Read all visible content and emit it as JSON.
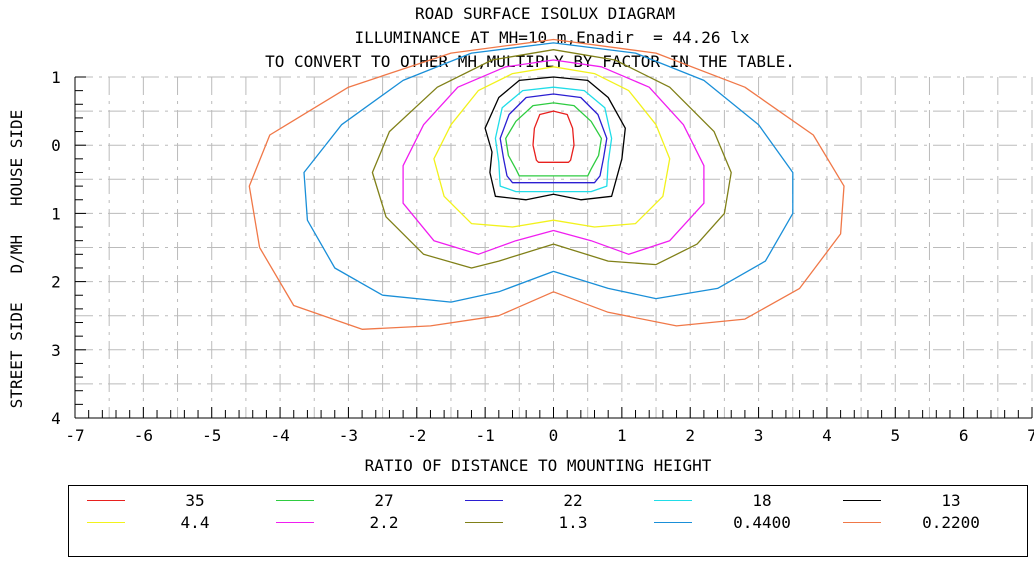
{
  "chart_data": {
    "type": "contour",
    "title_lines": [
      "ROAD SURFACE ISOLUX DIAGRAM",
      "ILLUMINANCE AT MH=10 m,Enadir  = 44.26 lx",
      "TO CONVERT TO OTHER MH,MULTIPLY BY FACTOR IN THE TABLE."
    ],
    "xlabel": "RATIO OF DISTANCE TO MOUNTING HEIGHT",
    "ylabel": "STREET SIDE   D/MH   HOUSE SIDE",
    "xlim": [
      -7,
      7
    ],
    "ylim": [
      -1,
      4
    ],
    "x_ticks": [
      "-7",
      "-6",
      "-5",
      "-4",
      "-3",
      "-2",
      "-1",
      "0",
      "1",
      "2",
      "3",
      "4",
      "5",
      "6",
      "7"
    ],
    "y_ticks": [
      {
        "value": -1,
        "label": "1"
      },
      {
        "value": 0,
        "label": "0"
      },
      {
        "value": 1,
        "label": "1"
      },
      {
        "value": 2,
        "label": "2"
      },
      {
        "value": 3,
        "label": "3"
      },
      {
        "value": 4,
        "label": "4"
      }
    ],
    "grid": true,
    "contours": [
      {
        "level": "35",
        "color": "#e8201e",
        "points": [
          [
            0,
            -0.5
          ],
          [
            0.2,
            -0.45
          ],
          [
            0.28,
            -0.25
          ],
          [
            0.3,
            0
          ],
          [
            0.25,
            0.22
          ],
          [
            0.22,
            0.25
          ],
          [
            0,
            0.25
          ],
          [
            -0.22,
            0.25
          ],
          [
            -0.25,
            0.22
          ],
          [
            -0.3,
            0
          ],
          [
            -0.28,
            -0.25
          ],
          [
            -0.2,
            -0.45
          ]
        ]
      },
      {
        "level": "27",
        "color": "#2ecc40",
        "points": [
          [
            0,
            -0.62
          ],
          [
            0.3,
            -0.58
          ],
          [
            0.55,
            -0.35
          ],
          [
            0.7,
            -0.1
          ],
          [
            0.66,
            0.15
          ],
          [
            0.55,
            0.35
          ],
          [
            0.5,
            0.45
          ],
          [
            0,
            0.45
          ],
          [
            -0.5,
            0.45
          ],
          [
            -0.55,
            0.35
          ],
          [
            -0.66,
            0.15
          ],
          [
            -0.7,
            -0.1
          ],
          [
            -0.55,
            -0.35
          ],
          [
            -0.3,
            -0.58
          ]
        ]
      },
      {
        "level": "22",
        "color": "#2b1ed2",
        "points": [
          [
            0,
            -0.75
          ],
          [
            0.4,
            -0.7
          ],
          [
            0.65,
            -0.45
          ],
          [
            0.78,
            -0.1
          ],
          [
            0.73,
            0.2
          ],
          [
            0.68,
            0.45
          ],
          [
            0.6,
            0.55
          ],
          [
            0,
            0.55
          ],
          [
            -0.6,
            0.55
          ],
          [
            -0.68,
            0.45
          ],
          [
            -0.73,
            0.2
          ],
          [
            -0.78,
            -0.1
          ],
          [
            -0.65,
            -0.45
          ],
          [
            -0.4,
            -0.7
          ]
        ]
      },
      {
        "level": "18",
        "color": "#20dde8",
        "points": [
          [
            0,
            -0.85
          ],
          [
            0.45,
            -0.8
          ],
          [
            0.75,
            -0.55
          ],
          [
            0.85,
            -0.1
          ],
          [
            0.8,
            0.25
          ],
          [
            0.78,
            0.6
          ],
          [
            0.55,
            0.68
          ],
          [
            0,
            0.68
          ],
          [
            -0.55,
            0.68
          ],
          [
            -0.78,
            0.6
          ],
          [
            -0.8,
            0.25
          ],
          [
            -0.85,
            -0.1
          ],
          [
            -0.75,
            -0.55
          ],
          [
            -0.45,
            -0.8
          ]
        ]
      },
      {
        "level": "13",
        "color": "#000000",
        "points": [
          [
            0,
            -1
          ],
          [
            0.5,
            -0.95
          ],
          [
            0.8,
            -0.7
          ],
          [
            1.05,
            -0.25
          ],
          [
            1.0,
            0.2
          ],
          [
            0.85,
            0.75
          ],
          [
            0.4,
            0.8
          ],
          [
            0,
            0.72
          ],
          [
            -0.4,
            0.8
          ],
          [
            -0.85,
            0.75
          ],
          [
            -0.93,
            0.4
          ],
          [
            -0.9,
            0.1
          ],
          [
            -1.0,
            -0.25
          ],
          [
            -0.8,
            -0.7
          ],
          [
            -0.5,
            -0.95
          ]
        ]
      },
      {
        "level": "4.4",
        "color": "#f2f21c",
        "points": [
          [
            0,
            -1.15
          ],
          [
            0.6,
            -1.05
          ],
          [
            1.1,
            -0.8
          ],
          [
            1.5,
            -0.3
          ],
          [
            1.7,
            0.2
          ],
          [
            1.6,
            0.75
          ],
          [
            1.2,
            1.15
          ],
          [
            0.6,
            1.2
          ],
          [
            0,
            1.1
          ],
          [
            -0.6,
            1.2
          ],
          [
            -1.2,
            1.15
          ],
          [
            -1.6,
            0.75
          ],
          [
            -1.75,
            0.2
          ],
          [
            -1.5,
            -0.3
          ],
          [
            -1.1,
            -0.8
          ],
          [
            -0.6,
            -1.05
          ]
        ]
      },
      {
        "level": "2.2",
        "color": "#f01ef0",
        "points": [
          [
            0,
            -1.25
          ],
          [
            0.7,
            -1.15
          ],
          [
            1.4,
            -0.85
          ],
          [
            1.9,
            -0.3
          ],
          [
            2.2,
            0.3
          ],
          [
            2.2,
            0.85
          ],
          [
            1.7,
            1.4
          ],
          [
            1.1,
            1.6
          ],
          [
            0.55,
            1.4
          ],
          [
            0,
            1.25
          ],
          [
            -0.55,
            1.4
          ],
          [
            -1.1,
            1.6
          ],
          [
            -1.75,
            1.4
          ],
          [
            -2.2,
            0.85
          ],
          [
            -2.2,
            0.3
          ],
          [
            -1.9,
            -0.3
          ],
          [
            -1.4,
            -0.85
          ],
          [
            -0.7,
            -1.15
          ]
        ]
      },
      {
        "level": "1.3",
        "color": "#808018",
        "points": [
          [
            0,
            -1.4
          ],
          [
            0.9,
            -1.25
          ],
          [
            1.7,
            -0.85
          ],
          [
            2.35,
            -0.2
          ],
          [
            2.6,
            0.4
          ],
          [
            2.5,
            1.0
          ],
          [
            2.1,
            1.45
          ],
          [
            1.5,
            1.75
          ],
          [
            0.8,
            1.7
          ],
          [
            0,
            1.45
          ],
          [
            -0.8,
            1.7
          ],
          [
            -1.2,
            1.8
          ],
          [
            -1.9,
            1.6
          ],
          [
            -2.45,
            1.05
          ],
          [
            -2.65,
            0.4
          ],
          [
            -2.4,
            -0.2
          ],
          [
            -1.7,
            -0.85
          ],
          [
            -0.9,
            -1.25
          ]
        ]
      },
      {
        "level": "0.4400",
        "color": "#1a8fd8",
        "points": [
          [
            0,
            -1.5
          ],
          [
            1.2,
            -1.35
          ],
          [
            2.2,
            -0.95
          ],
          [
            3.0,
            -0.3
          ],
          [
            3.5,
            0.4
          ],
          [
            3.5,
            1.0
          ],
          [
            3.1,
            1.7
          ],
          [
            2.4,
            2.1
          ],
          [
            1.5,
            2.25
          ],
          [
            0.8,
            2.1
          ],
          [
            0,
            1.85
          ],
          [
            -0.8,
            2.15
          ],
          [
            -1.5,
            2.3
          ],
          [
            -2.5,
            2.2
          ],
          [
            -3.2,
            1.8
          ],
          [
            -3.6,
            1.1
          ],
          [
            -3.65,
            0.4
          ],
          [
            -3.1,
            -0.3
          ],
          [
            -2.2,
            -0.95
          ],
          [
            -1.2,
            -1.35
          ]
        ]
      },
      {
        "level": "0.2200",
        "color": "#f07848",
        "points": [
          [
            0,
            -1.55
          ],
          [
            1.5,
            -1.35
          ],
          [
            2.8,
            -0.85
          ],
          [
            3.8,
            -0.15
          ],
          [
            4.25,
            0.6
          ],
          [
            4.2,
            1.3
          ],
          [
            3.6,
            2.1
          ],
          [
            2.8,
            2.55
          ],
          [
            1.8,
            2.65
          ],
          [
            0.8,
            2.45
          ],
          [
            0,
            2.15
          ],
          [
            -0.8,
            2.5
          ],
          [
            -1.8,
            2.65
          ],
          [
            -2.8,
            2.7
          ],
          [
            -3.8,
            2.35
          ],
          [
            -4.3,
            1.5
          ],
          [
            -4.45,
            0.6
          ],
          [
            -4.15,
            -0.15
          ],
          [
            -3.0,
            -0.85
          ],
          [
            -1.5,
            -1.35
          ]
        ]
      }
    ]
  },
  "legend": [
    {
      "label": "35",
      "color": "#e8201e"
    },
    {
      "label": "27",
      "color": "#2ecc40"
    },
    {
      "label": "22",
      "color": "#2b1ed2"
    },
    {
      "label": "18",
      "color": "#20dde8"
    },
    {
      "label": "13",
      "color": "#000000"
    },
    {
      "label": "4.4",
      "color": "#f2f21c"
    },
    {
      "label": "2.2",
      "color": "#f01ef0"
    },
    {
      "label": "1.3",
      "color": "#808018"
    },
    {
      "label": "0.4400",
      "color": "#1a8fd8"
    },
    {
      "label": "0.2200",
      "color": "#f07848"
    }
  ]
}
